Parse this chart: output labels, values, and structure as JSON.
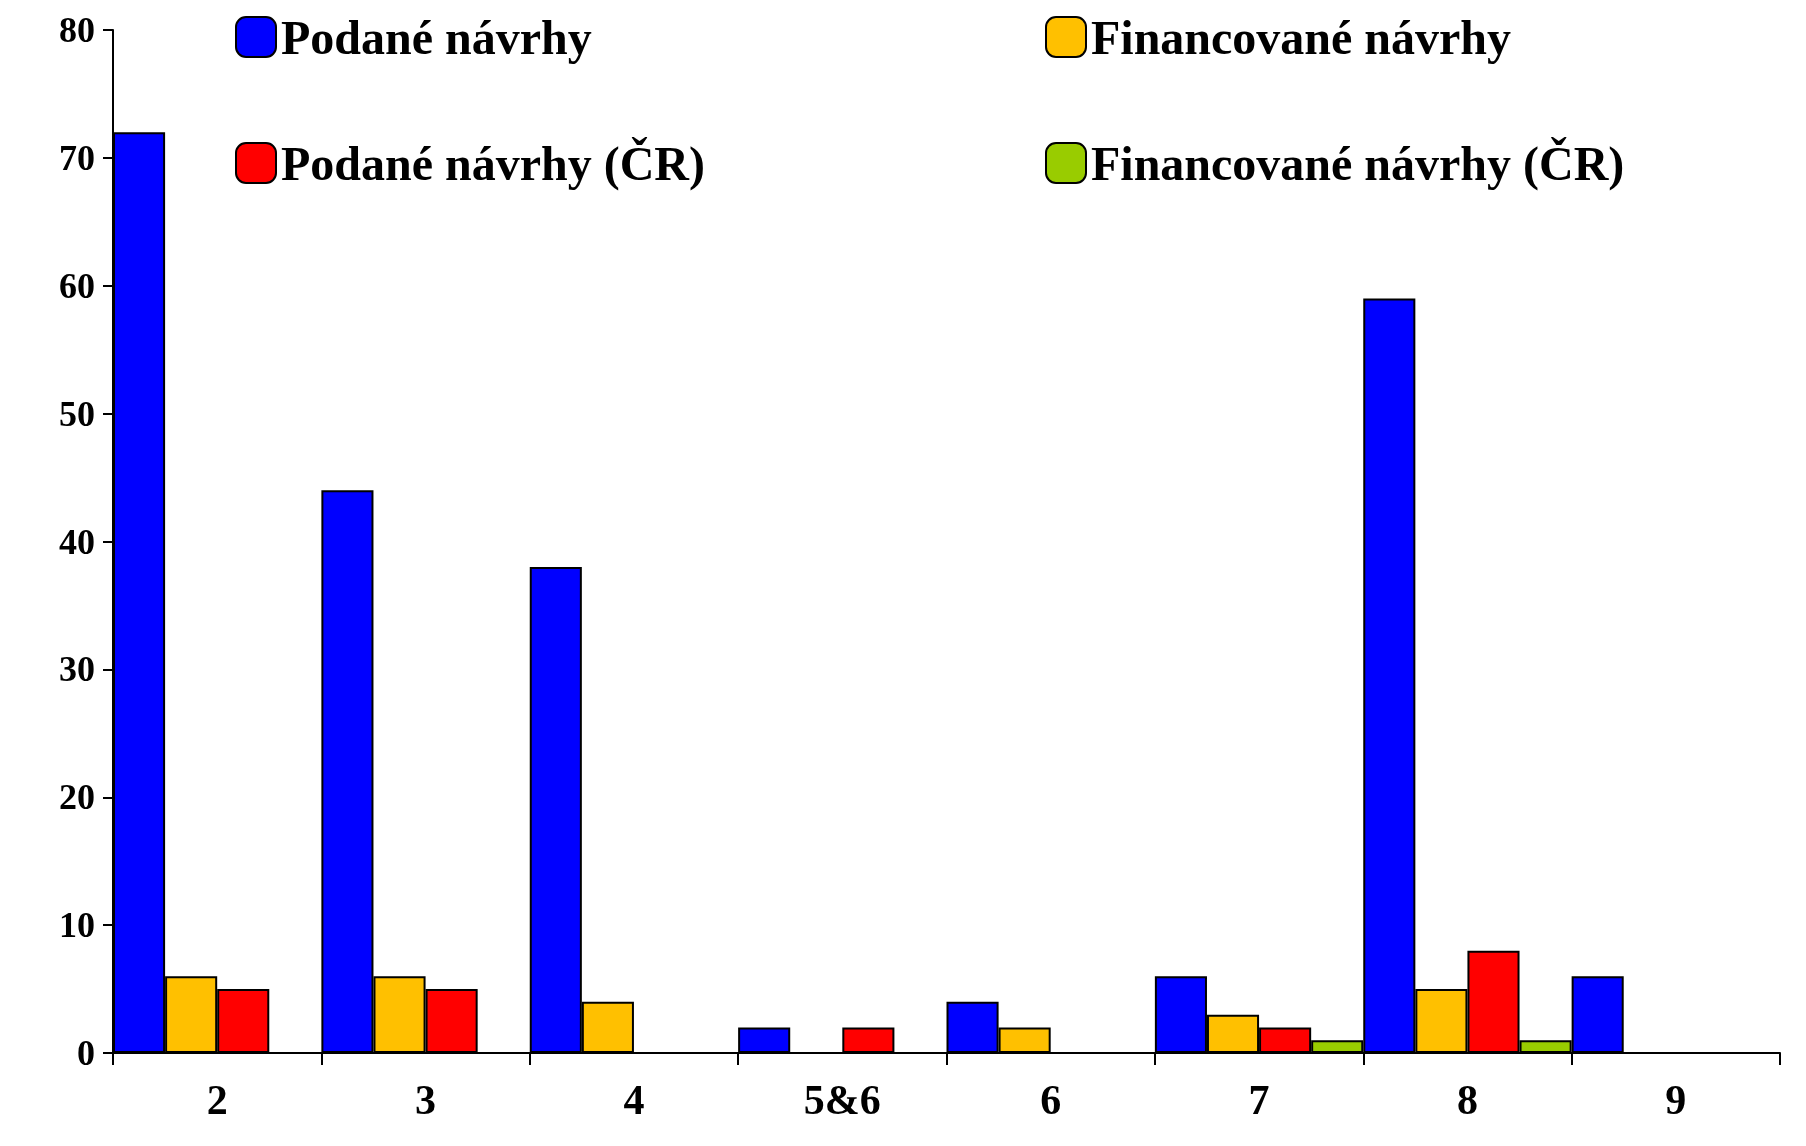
{
  "chart_data": {
    "type": "bar",
    "categories": [
      "2",
      "3",
      "4",
      "5&6",
      "6",
      "7",
      "8",
      "9"
    ],
    "series": [
      {
        "name": "Podané návrhy",
        "color": "#0000ff",
        "values": [
          72,
          44,
          38,
          2,
          4,
          6,
          59,
          6
        ]
      },
      {
        "name": "Financované návrhy",
        "color": "#ffc000",
        "values": [
          6,
          6,
          4,
          null,
          2,
          3,
          5,
          null
        ]
      },
      {
        "name": "Podané návrhy (ČR)",
        "color": "#ff0000",
        "values": [
          5,
          5,
          null,
          2,
          null,
          2,
          8,
          null
        ]
      },
      {
        "name": "Financované návrhy (ČR)",
        "color": "#99cc00",
        "values": [
          null,
          null,
          null,
          null,
          null,
          1,
          1,
          null
        ]
      }
    ],
    "ylim": [
      0,
      80
    ],
    "yticks": [
      0,
      10,
      20,
      30,
      40,
      50,
      60,
      70,
      80
    ],
    "grid": false,
    "legend": "top right"
  }
}
